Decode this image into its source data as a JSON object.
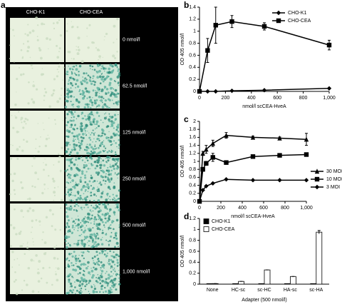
{
  "panel_a": {
    "panel": "a",
    "columns": [
      "CHO-K1",
      "CHO-CEA"
    ],
    "rows": [
      "0 nmol/l",
      "62.5 nmol/l",
      "125 nmol/l",
      "250 nmol/l",
      "500 nmol/l",
      "1,000 nmol/l"
    ]
  },
  "chart_data": [
    {
      "panel": "b",
      "type": "line",
      "xlabel": "nmol/l scCEA-HveA",
      "ylabel": "OD 405 nmol/l",
      "x": [
        0,
        62.5,
        125,
        250,
        500,
        1000
      ],
      "series": [
        {
          "name": "CHO-K1",
          "color": "#000000",
          "marker": "diamond",
          "values": [
            0,
            0,
            0,
            0.01,
            0.02,
            0.05
          ]
        },
        {
          "name": "CHO-CEA",
          "color": "#000000",
          "marker": "square",
          "values": [
            0,
            0.68,
            1.1,
            1.16,
            1.08,
            0.77
          ],
          "errors": [
            0.02,
            0.2,
            0.3,
            0.1,
            0.06,
            0.08
          ]
        }
      ],
      "xlim": [
        0,
        1000
      ],
      "xticks": [
        0,
        200,
        400,
        600,
        800,
        {
          "value": 1000,
          "label": "1,000"
        }
      ],
      "ylim": [
        0,
        1.4
      ],
      "yticks": [
        0,
        0.2,
        0.4,
        0.6,
        0.8,
        1,
        1.2,
        1.4
      ],
      "legend": "upper right"
    },
    {
      "panel": "c",
      "type": "line",
      "xlabel": "nmol/l scCEA-HveA",
      "ylabel": "OD 405 nmol/l",
      "x": [
        0,
        31.25,
        62.5,
        125,
        250,
        500,
        750,
        1000
      ],
      "series": [
        {
          "name": "30 MOI",
          "color": "#000000",
          "marker": "triangle",
          "values": [
            0,
            1.2,
            1.3,
            1.45,
            1.65,
            1.6,
            1.58,
            1.55
          ],
          "errors": [
            0,
            0.05,
            0.1,
            0.08,
            0.07,
            0.03,
            0.03,
            0.15
          ]
        },
        {
          "name": "10 MOI",
          "color": "#000000",
          "marker": "square",
          "values": [
            0,
            0.8,
            0.95,
            1.1,
            0.97,
            1.12,
            1.15,
            1.17
          ],
          "errors": [
            0,
            0.05,
            0.05,
            0.1,
            0.03,
            0.03,
            0.03,
            0.03
          ]
        },
        {
          "name": "3 MOI",
          "color": "#000000",
          "marker": "diamond",
          "values": [
            0,
            0.28,
            0.38,
            0.45,
            0.55,
            0.53,
            0.53,
            0.53
          ]
        }
      ],
      "xlim": [
        0,
        1000
      ],
      "xticks": [
        0,
        200,
        400,
        600,
        800,
        {
          "value": 1000,
          "label": "1,000"
        }
      ],
      "ylim": [
        0,
        2
      ],
      "yticks": [
        0,
        0.2,
        0.4,
        0.6,
        0.8,
        1,
        1.2,
        1.4,
        1.6,
        1.8,
        2
      ],
      "legend": "right"
    },
    {
      "panel": "d",
      "type": "bar",
      "xlabel": "Adapter (500 nmol/l)",
      "ylabel": "OD 405 nmol/l",
      "categories": [
        "None",
        "HC-sc",
        "sc-HC",
        "HA-sc",
        "sc-HA"
      ],
      "series": [
        {
          "name": "CHO-K1",
          "color": "#000000",
          "values": [
            0.01,
            0.01,
            0.01,
            0.01,
            0.01
          ]
        },
        {
          "name": "CHO-CEA",
          "color": "#ffffff",
          "values": [
            0.01,
            0.05,
            0.26,
            0.14,
            0.95
          ],
          "errors": [
            0,
            0,
            0,
            0,
            0.03
          ]
        }
      ],
      "ylim": [
        0,
        1.2
      ],
      "yticks": [
        0,
        0.2,
        0.4,
        0.6,
        0.8,
        1,
        1.2
      ],
      "legend": "upper left"
    }
  ]
}
